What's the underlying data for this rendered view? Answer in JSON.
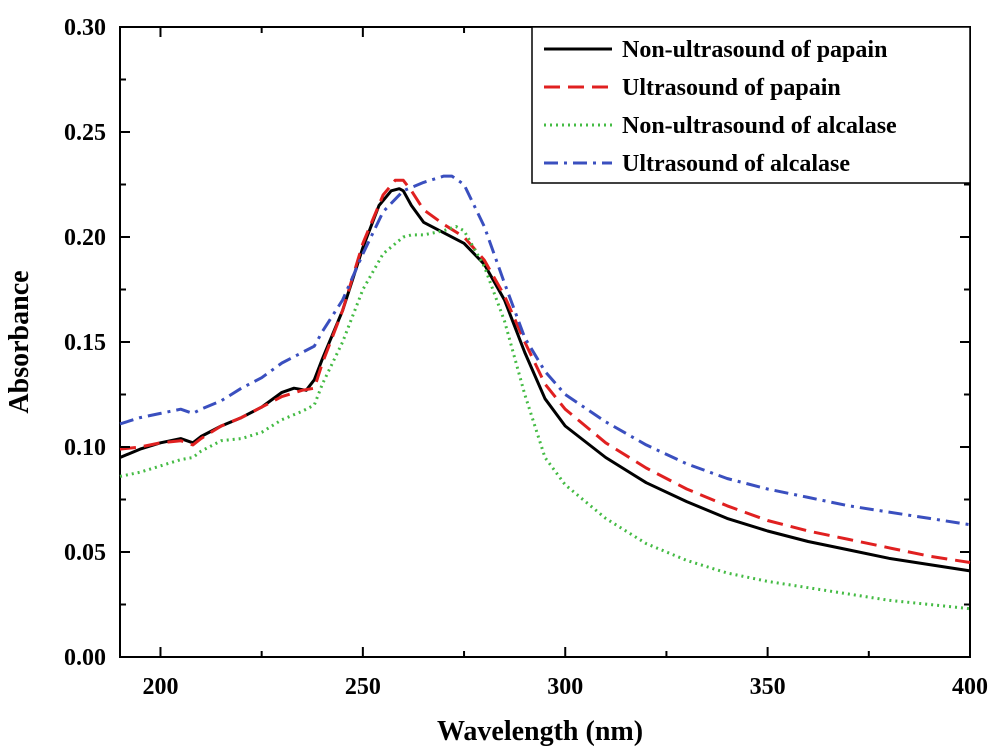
{
  "chart_data": {
    "type": "line",
    "title": "",
    "xlabel": "Wavelength (nm)",
    "ylabel": "Absorbance",
    "xlim": [
      190,
      400
    ],
    "ylim": [
      0.0,
      0.3
    ],
    "x_ticks": [
      200,
      250,
      300,
      350,
      400
    ],
    "x_tick_labels": [
      "200",
      "250",
      "300",
      "350",
      "400"
    ],
    "y_ticks": [
      0.0,
      0.05,
      0.1,
      0.15,
      0.2,
      0.25,
      0.3
    ],
    "y_tick_labels": [
      "0.00",
      "0.05",
      "0.10",
      "0.15",
      "0.20",
      "0.25",
      "0.30"
    ],
    "grid": false,
    "legend_position": "top-right",
    "series": [
      {
        "name": "Non-ultrasound of papain",
        "color": "#000000",
        "dash": "solid",
        "x": [
          190,
          195,
          200,
          205,
          208,
          210,
          215,
          220,
          225,
          230,
          233,
          236,
          238,
          240,
          245,
          250,
          254,
          257,
          259,
          260,
          262,
          265,
          270,
          275,
          280,
          285,
          290,
          295,
          300,
          310,
          320,
          330,
          340,
          350,
          360,
          370,
          380,
          390,
          400
        ],
        "y": [
          0.095,
          0.099,
          0.102,
          0.104,
          0.102,
          0.105,
          0.11,
          0.114,
          0.119,
          0.126,
          0.128,
          0.127,
          0.132,
          0.142,
          0.165,
          0.195,
          0.215,
          0.222,
          0.223,
          0.222,
          0.215,
          0.207,
          0.202,
          0.197,
          0.187,
          0.17,
          0.145,
          0.123,
          0.11,
          0.095,
          0.083,
          0.074,
          0.066,
          0.06,
          0.055,
          0.051,
          0.047,
          0.044,
          0.041
        ]
      },
      {
        "name": "Ultrasound of papain",
        "color": "#e02020",
        "dash": "dashed",
        "x": [
          190,
          195,
          200,
          205,
          208,
          210,
          215,
          220,
          225,
          230,
          235,
          238,
          240,
          245,
          250,
          255,
          258,
          260,
          262,
          265,
          270,
          275,
          280,
          285,
          290,
          295,
          300,
          310,
          320,
          330,
          340,
          350,
          360,
          370,
          380,
          390,
          400
        ],
        "y": [
          0.099,
          0.1,
          0.102,
          0.103,
          0.101,
          0.104,
          0.11,
          0.114,
          0.119,
          0.124,
          0.127,
          0.128,
          0.14,
          0.165,
          0.197,
          0.22,
          0.227,
          0.227,
          0.222,
          0.213,
          0.206,
          0.2,
          0.189,
          0.172,
          0.15,
          0.13,
          0.118,
          0.102,
          0.09,
          0.08,
          0.072,
          0.065,
          0.06,
          0.056,
          0.052,
          0.048,
          0.045
        ]
      },
      {
        "name": "Non-ultrasound of alcalase",
        "color": "#44bb44",
        "dash": "dotted",
        "x": [
          190,
          195,
          200,
          205,
          208,
          210,
          215,
          220,
          225,
          230,
          235,
          238,
          240,
          245,
          250,
          255,
          260,
          262,
          265,
          270,
          273,
          275,
          280,
          285,
          290,
          295,
          300,
          310,
          320,
          330,
          340,
          350,
          360,
          370,
          380,
          390,
          400
        ],
        "y": [
          0.086,
          0.088,
          0.091,
          0.094,
          0.095,
          0.098,
          0.103,
          0.104,
          0.107,
          0.113,
          0.117,
          0.12,
          0.13,
          0.15,
          0.175,
          0.192,
          0.2,
          0.201,
          0.201,
          0.203,
          0.205,
          0.203,
          0.186,
          0.16,
          0.125,
          0.095,
          0.082,
          0.066,
          0.054,
          0.046,
          0.04,
          0.036,
          0.033,
          0.03,
          0.027,
          0.025,
          0.023
        ]
      },
      {
        "name": "Ultrasound of alcalase",
        "color": "#3a4fbf",
        "dash": "dashdot",
        "x": [
          190,
          195,
          200,
          205,
          208,
          210,
          215,
          220,
          225,
          230,
          235,
          238,
          240,
          245,
          250,
          255,
          260,
          265,
          270,
          272,
          275,
          280,
          285,
          290,
          295,
          300,
          310,
          320,
          330,
          340,
          350,
          360,
          370,
          380,
          390,
          400
        ],
        "y": [
          0.111,
          0.114,
          0.116,
          0.118,
          0.116,
          0.118,
          0.122,
          0.128,
          0.133,
          0.14,
          0.145,
          0.148,
          0.155,
          0.17,
          0.192,
          0.212,
          0.222,
          0.226,
          0.229,
          0.229,
          0.225,
          0.205,
          0.178,
          0.152,
          0.136,
          0.125,
          0.112,
          0.101,
          0.092,
          0.085,
          0.08,
          0.076,
          0.072,
          0.069,
          0.066,
          0.063
        ]
      }
    ]
  }
}
